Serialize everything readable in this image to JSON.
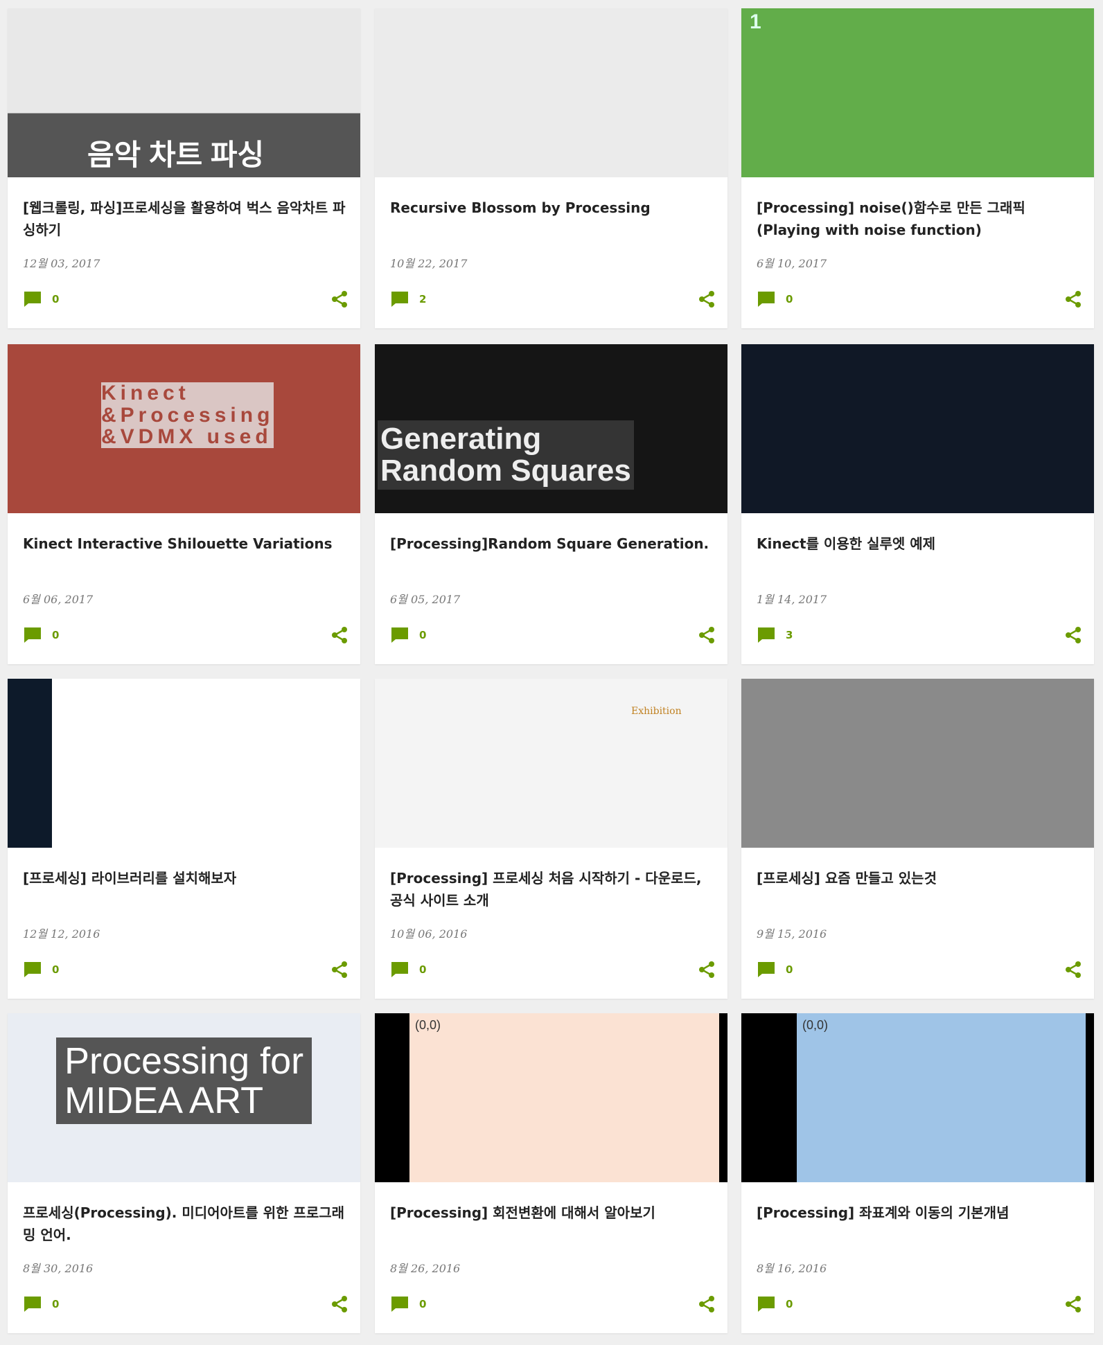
{
  "posts": [
    {
      "title": "[웹크롤링, 파싱]프로세싱을 활용하여 벅스 음악차트 파싱하기",
      "date": "12월 03, 2017",
      "comments": "0",
      "thumb_color": "#d9d9d9",
      "thumb_lines": [
        "음악 차트 파싱"
      ]
    },
    {
      "title": "Recursive Blossom by Processing",
      "date": "10월 22, 2017",
      "comments": "2",
      "thumb_color": "#ebebeb",
      "thumb_lines": []
    },
    {
      "title": "[Processing] noise()함수로 만든 그래픽(Playing with noise function)",
      "date": "6월 10, 2017",
      "comments": "0",
      "thumb_color": "#62ad4a",
      "thumb_lines": [
        "1"
      ]
    },
    {
      "title": "Kinect Interactive Shilouette Variations",
      "date": "6월 06, 2017",
      "comments": "0",
      "thumb_color": "#a8483c",
      "thumb_lines": [
        "Kinect",
        "&Processing",
        "&VDMX used"
      ]
    },
    {
      "title": "[Processing]Random Square Generation.",
      "date": "6월 05, 2017",
      "comments": "0",
      "thumb_color": "#151515",
      "thumb_lines": [
        "Generating",
        "Random Squares"
      ]
    },
    {
      "title": "Kinect를 이용한 실루엣 예제",
      "date": "1월 14, 2017",
      "comments": "3",
      "thumb_color": "#101826",
      "thumb_lines": []
    },
    {
      "title": "[프로세싱] 라이브러리를 설치해보자",
      "date": "12월 12, 2016",
      "comments": "0",
      "thumb_color": "#ffffff",
      "thumb_lines": []
    },
    {
      "title": "[Processing] 프로세싱 처음 시작하기 - 다운로드, 공식 사이트 소개",
      "date": "10월 06, 2016",
      "comments": "0",
      "thumb_color": "#f4f4f4",
      "thumb_lines": [
        "Exhibition"
      ]
    },
    {
      "title": "[프로세싱] 요즘 만들고 있는것",
      "date": "9월 15, 2016",
      "comments": "0",
      "thumb_color": "#8a8a8a",
      "thumb_lines": []
    },
    {
      "title": "프로세싱(Processing). 미디어아트를 위한 프로그래밍 언어.",
      "date": "8월 30, 2016",
      "comments": "0",
      "thumb_color": "#e9edf3",
      "thumb_lines": [
        "Processing for",
        "MIDEA ART"
      ]
    },
    {
      "title": "[Processing] 회전변환에 대해서 알아보기",
      "date": "8월 26, 2016",
      "comments": "0",
      "thumb_color": "#fbe2d3",
      "thumb_lines": [
        "(0,0)"
      ]
    },
    {
      "title": "[Processing] 좌표계와 이동의 기본개념",
      "date": "8월 16, 2016",
      "comments": "0",
      "thumb_color": "#9fc4e7",
      "thumb_lines": [
        "(0,0)"
      ]
    }
  ]
}
